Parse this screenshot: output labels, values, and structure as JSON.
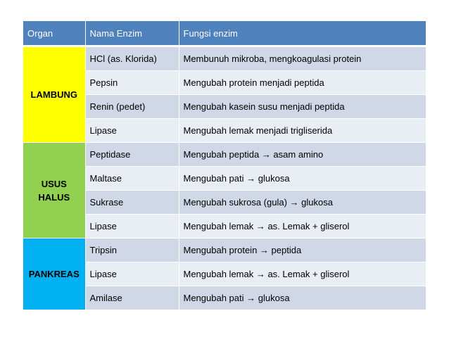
{
  "table": {
    "headers": [
      "Organ",
      "Nama Enzim",
      "Fungsi enzim"
    ],
    "groups": [
      {
        "organ_lines": [
          "LAMBUNG"
        ],
        "color": "#ffff00",
        "rows": [
          {
            "enzim": "HCl (as. Klorida)",
            "fungsi": "Membunuh mikroba, mengkoagulasi protein"
          },
          {
            "enzim": "Pepsin",
            "fungsi": "Mengubah protein menjadi peptida"
          },
          {
            "enzim": "Renin (pedet)",
            "fungsi": "Mengubah kasein susu menjadi peptida"
          },
          {
            "enzim": "Lipase",
            "fungsi": "Mengubah lemak menjadi trigliserida"
          }
        ]
      },
      {
        "organ_lines": [
          "USUS",
          "HALUS"
        ],
        "color": "#92d050",
        "rows": [
          {
            "enzim": "Peptidase",
            "fungsi": "Mengubah peptida → asam amino"
          },
          {
            "enzim": "Maltase",
            "fungsi": "Mengubah pati → glukosa"
          },
          {
            "enzim": "Sukrase",
            "fungsi": "Mengubah sukrosa (gula) → glukosa"
          },
          {
            "enzim": "Lipase",
            "fungsi": "Mengubah lemak → as. Lemak + gliserol"
          }
        ]
      },
      {
        "organ_lines": [
          "PANKREAS"
        ],
        "color": "#00b0f0",
        "rows": [
          {
            "enzim": "Tripsin",
            "fungsi": "Mengubah protein → peptida"
          },
          {
            "enzim": "Lipase",
            "fungsi": "Mengubah lemak → as. Lemak + gliserol"
          },
          {
            "enzim": "Amilase",
            "fungsi": "Mengubah pati → glukosa"
          }
        ]
      }
    ]
  },
  "colors": {
    "header": "#4f81bd",
    "band_dark": "#d0d8e8",
    "band_light": "#e9edf4"
  }
}
